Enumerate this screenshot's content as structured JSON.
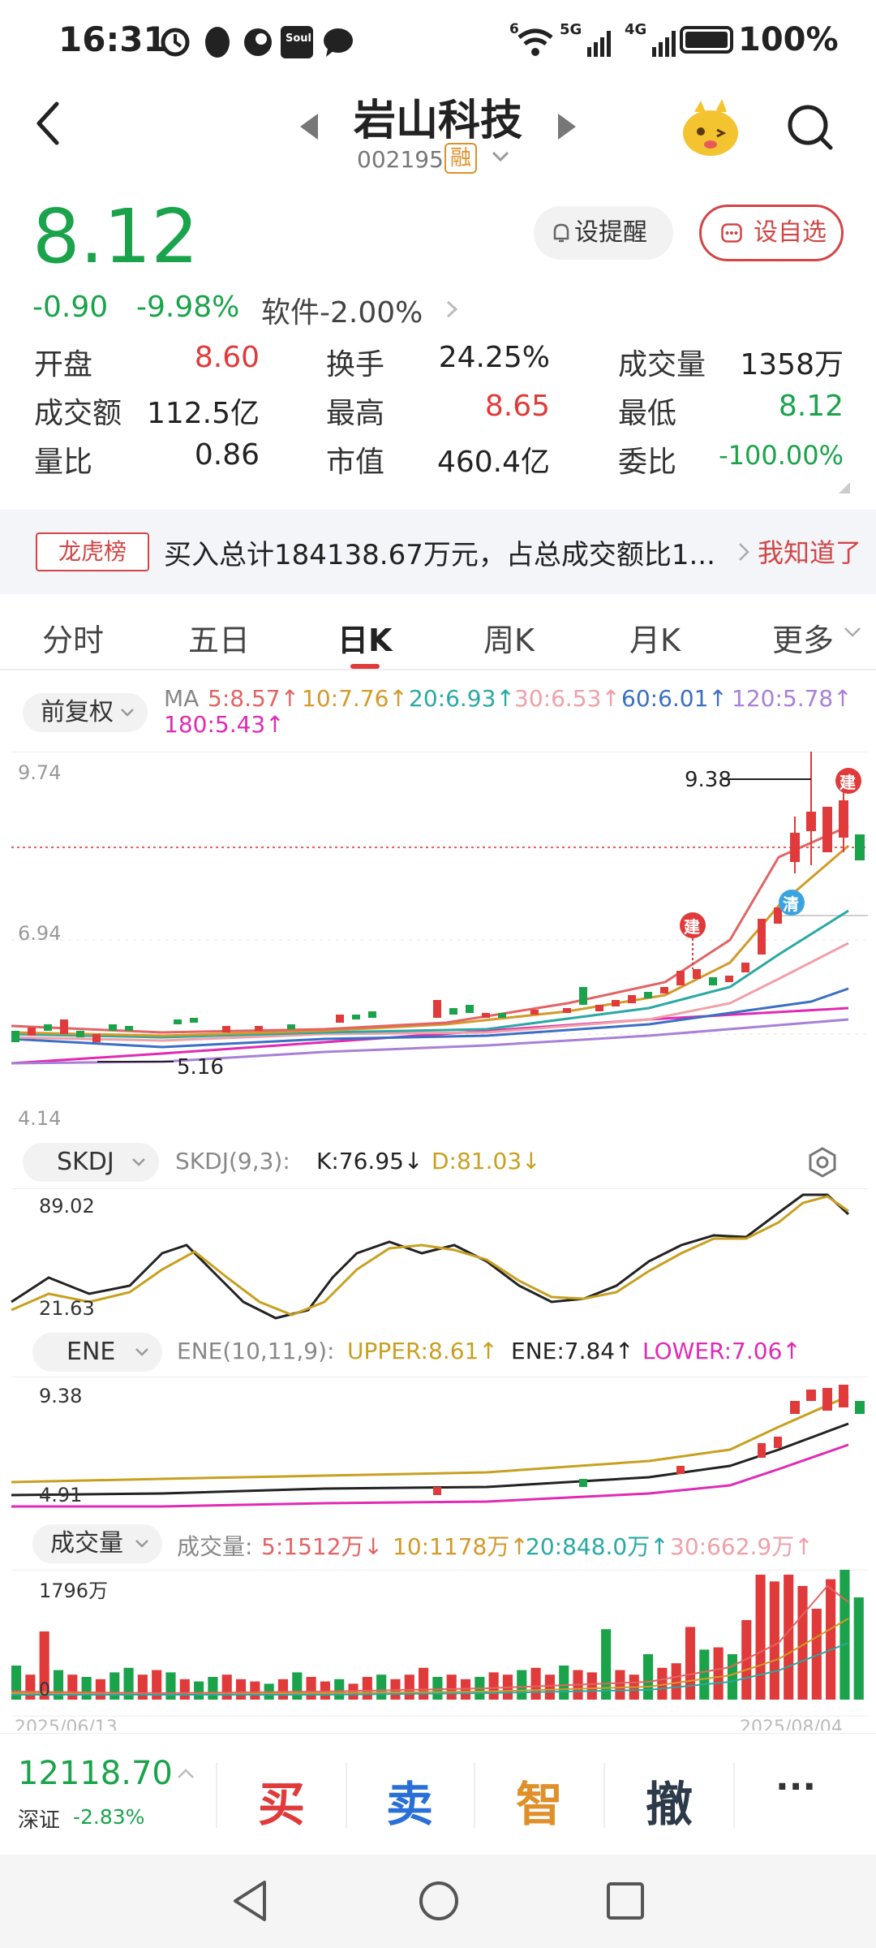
{
  "status_bar": {
    "time": "16:31",
    "left_icons": [
      "alarm-icon",
      "qq-icon",
      "app-icon",
      "soul-icon",
      "chat-icon"
    ],
    "soul_label": "Soul",
    "signal_labels": [
      "6",
      "5G",
      "4G"
    ],
    "battery": "100%"
  },
  "header": {
    "stock_name": "岩山科技",
    "stock_code": "002195",
    "margin_badge": "融"
  },
  "quote": {
    "price": "8.12",
    "change": "-0.90",
    "change_pct": "-9.98%",
    "sector": "软件-2.00%",
    "alert_button": "设提醒",
    "watchlist_button": "设自选",
    "stats": [
      {
        "label": "开盘",
        "value": "8.60",
        "tone": "red"
      },
      {
        "label": "换手",
        "value": "24.25%",
        "tone": "neutral"
      },
      {
        "label": "成交量",
        "value": "1358万",
        "tone": "neutral"
      },
      {
        "label": "成交额",
        "value": "112.5亿",
        "tone": "neutral"
      },
      {
        "label": "最高",
        "value": "8.65",
        "tone": "red"
      },
      {
        "label": "最低",
        "value": "8.12",
        "tone": "green"
      },
      {
        "label": "量比",
        "value": "0.86",
        "tone": "neutral"
      },
      {
        "label": "市值",
        "value": "460.4亿",
        "tone": "neutral"
      },
      {
        "label": "委比",
        "value": "-100.00%",
        "tone": "green"
      }
    ]
  },
  "notice": {
    "tag": "龙虎榜",
    "text": "买入总计184138.67万元，占总成交额比1...",
    "action": "我知道了"
  },
  "tabs": [
    "分时",
    "五日",
    "日K",
    "周K",
    "月K",
    "更多"
  ],
  "active_tab": "日K",
  "main_chart": {
    "adjust_label": "前复权",
    "ma_prefix": "MA",
    "ma": [
      {
        "label": "5:8.57↑",
        "color": "#e36363"
      },
      {
        "label": "10:7.76↑",
        "color": "#d29a2a"
      },
      {
        "label": "20:6.93↑",
        "color": "#2aa9a3"
      },
      {
        "label": "30:6.53↑",
        "color": "#f0a0a8"
      },
      {
        "label": "60:6.01↑",
        "color": "#3a6fc4"
      },
      {
        "label": "120:5.78↑",
        "color": "#a880d8"
      },
      {
        "label": "180:5.43↑",
        "color": "#e02ab4"
      }
    ],
    "y_top": "9.74",
    "y_mid": "6.94",
    "y_bottom": "4.14",
    "high_label": "9.38",
    "low_label": "5.16",
    "build_marker": "建",
    "clear_marker": "清"
  },
  "skdj": {
    "selector": "SKDJ",
    "params": "SKDJ(9,3):",
    "k": "K:76.95↓",
    "d": "D:81.03↓",
    "y_top": "89.02",
    "y_bottom": "21.63"
  },
  "ene": {
    "selector": "ENE",
    "params": "ENE(10,11,9):",
    "upper": "UPPER:8.61↑",
    "ene": "ENE:7.84↑",
    "lower": "LOWER:7.06↑",
    "y_top": "9.38",
    "y_bottom": "4.91"
  },
  "volume": {
    "selector": "成交量",
    "label": "成交量:",
    "ma5": "5:1512万↓",
    "ma10": "10:1178万↑",
    "ma20": "20:848.0万↑",
    "ma30": "30:662.9万↑",
    "y_top": "1796万",
    "y_bottom": "0",
    "date_start": "2025/06/13",
    "date_end": "2025/08/04"
  },
  "bottom_bar": {
    "index_value": "12118.70",
    "index_name": "深证",
    "index_change": "-2.83%",
    "actions": [
      {
        "label": "买",
        "color": "#e03a3a"
      },
      {
        "label": "卖",
        "color": "#2a6fd8"
      },
      {
        "label": "智",
        "color": "#e0902a"
      },
      {
        "label": "撤",
        "color": "#2c3a4a"
      }
    ],
    "more": "···"
  },
  "colors": {
    "up": "#e03a3a",
    "down": "#1aa34a",
    "accent": "#d24545"
  }
}
